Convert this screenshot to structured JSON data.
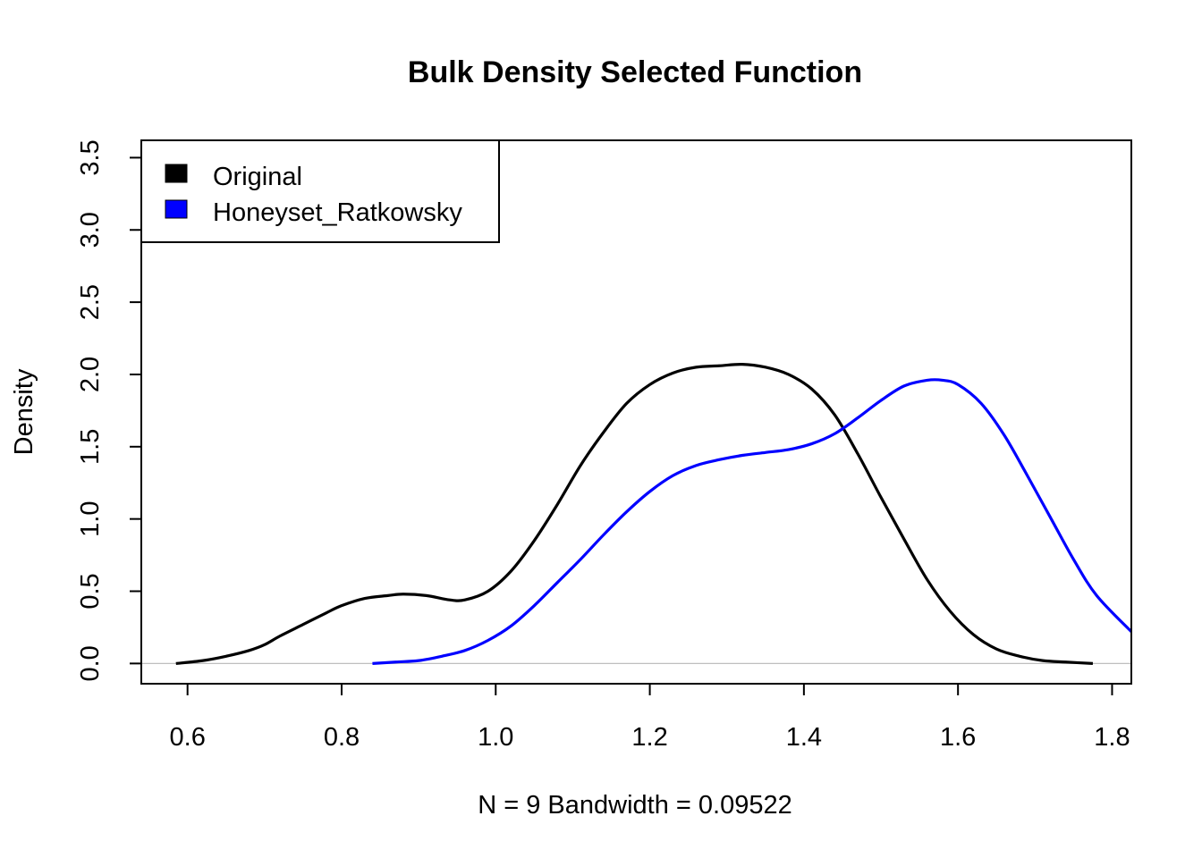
{
  "colors": {
    "background": "#ffffff",
    "original": "#000000",
    "honeyset": "#0000ff",
    "zero_line": "#bebebe"
  },
  "chart_data": {
    "type": "line",
    "title": "Bulk Density Selected Function",
    "xlabel": "N = 9   Bandwidth = 0.09522",
    "ylabel": "Density",
    "xlim": [
      0.54,
      1.825
    ],
    "ylim": [
      -0.14,
      3.62
    ],
    "x_ticks": [
      0.6,
      0.8,
      1.0,
      1.2,
      1.4,
      1.6,
      1.8
    ],
    "x_tick_labels": [
      "0.6",
      "0.8",
      "1.0",
      "1.2",
      "1.4",
      "1.6",
      "1.8"
    ],
    "y_ticks": [
      0.0,
      0.5,
      1.0,
      1.5,
      2.0,
      2.5,
      3.0,
      3.5
    ],
    "y_tick_labels": [
      "0.0",
      "0.5",
      "1.0",
      "1.5",
      "2.0",
      "2.5",
      "3.0",
      "3.5"
    ],
    "legend": {
      "position": "top-left",
      "entries": [
        {
          "label": "Original",
          "color": "#000000"
        },
        {
          "label": "Honeyset_Ratkowsky",
          "color": "#0000ff"
        }
      ]
    },
    "series": [
      {
        "name": "Original",
        "color": "#000000",
        "x": [
          0.585,
          0.62,
          0.65,
          0.68,
          0.7,
          0.72,
          0.75,
          0.78,
          0.8,
          0.83,
          0.86,
          0.88,
          0.91,
          0.94,
          0.96,
          0.99,
          1.02,
          1.05,
          1.08,
          1.11,
          1.14,
          1.17,
          1.2,
          1.23,
          1.26,
          1.29,
          1.32,
          1.35,
          1.38,
          1.41,
          1.44,
          1.47,
          1.5,
          1.53,
          1.56,
          1.59,
          1.62,
          1.65,
          1.68,
          1.71,
          1.74,
          1.775
        ],
        "y": [
          0.0,
          0.02,
          0.05,
          0.09,
          0.13,
          0.19,
          0.27,
          0.35,
          0.4,
          0.45,
          0.47,
          0.48,
          0.47,
          0.44,
          0.44,
          0.5,
          0.64,
          0.85,
          1.1,
          1.37,
          1.6,
          1.8,
          1.93,
          2.01,
          2.05,
          2.06,
          2.07,
          2.05,
          2.0,
          1.9,
          1.72,
          1.45,
          1.15,
          0.86,
          0.58,
          0.36,
          0.2,
          0.1,
          0.05,
          0.02,
          0.01,
          0.0
        ]
      },
      {
        "name": "Honeyset_Ratkowsky",
        "color": "#0000ff",
        "x": [
          0.84,
          0.87,
          0.9,
          0.93,
          0.96,
          0.99,
          1.02,
          1.05,
          1.08,
          1.11,
          1.14,
          1.17,
          1.2,
          1.23,
          1.26,
          1.29,
          1.32,
          1.35,
          1.38,
          1.41,
          1.44,
          1.47,
          1.5,
          1.53,
          1.56,
          1.58,
          1.6,
          1.63,
          1.66,
          1.69,
          1.72,
          1.75,
          1.78,
          1.825
        ],
        "y": [
          0.0,
          0.01,
          0.02,
          0.05,
          0.09,
          0.16,
          0.26,
          0.4,
          0.56,
          0.72,
          0.89,
          1.05,
          1.19,
          1.3,
          1.37,
          1.41,
          1.44,
          1.46,
          1.48,
          1.52,
          1.59,
          1.7,
          1.82,
          1.92,
          1.96,
          1.96,
          1.93,
          1.8,
          1.58,
          1.3,
          1.01,
          0.72,
          0.47,
          0.22
        ]
      }
    ]
  }
}
